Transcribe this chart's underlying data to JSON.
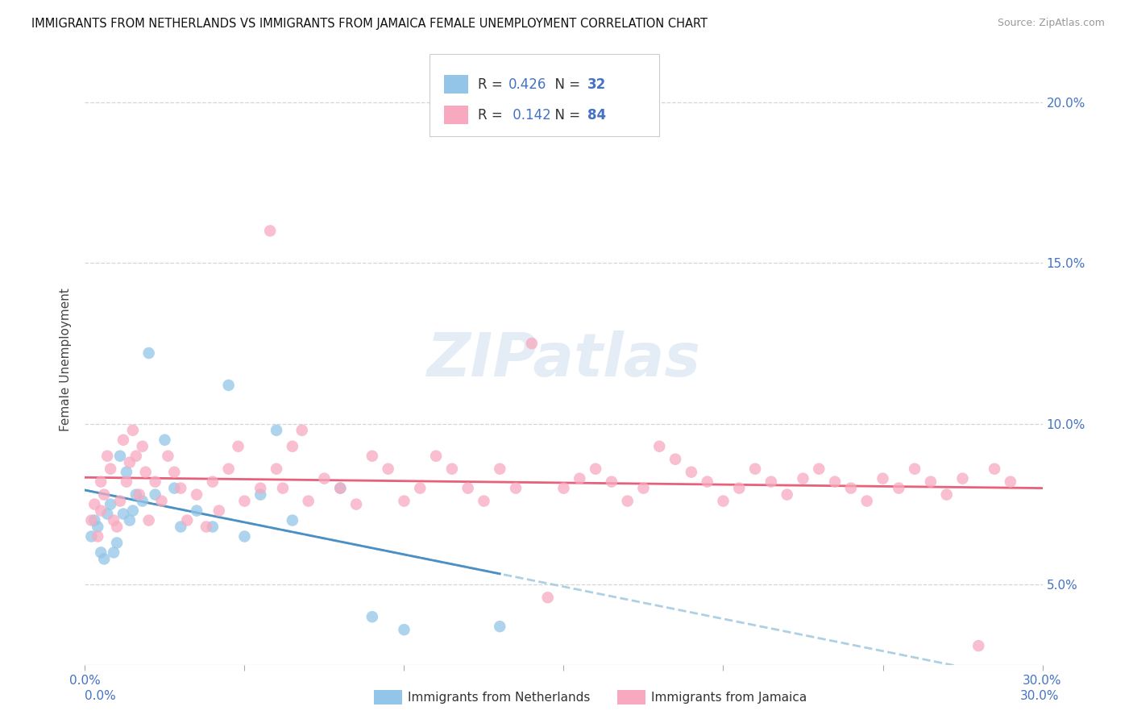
{
  "title": "IMMIGRANTS FROM NETHERLANDS VS IMMIGRANTS FROM JAMAICA FEMALE UNEMPLOYMENT CORRELATION CHART",
  "source": "Source: ZipAtlas.com",
  "ylabel": "Female Unemployment",
  "xlim": [
    0.0,
    0.3
  ],
  "ylim": [
    0.025,
    0.215
  ],
  "y_tick_vals": [
    0.05,
    0.1,
    0.15,
    0.2
  ],
  "y_tick_labels": [
    "5.0%",
    "10.0%",
    "15.0%",
    "20.0%"
  ],
  "legend_labels": [
    "Immigrants from Netherlands",
    "Immigrants from Jamaica"
  ],
  "legend_R": [
    "0.426",
    "0.142"
  ],
  "legend_N": [
    "32",
    "84"
  ],
  "color_blue": "#93c5e8",
  "color_pink": "#f8a9bf",
  "line_blue_solid": "#4a90c4",
  "line_pink_solid": "#e8607a",
  "line_blue_dashed": "#a0c8e0",
  "watermark": "ZIPatlas",
  "nl_x": [
    0.002,
    0.003,
    0.004,
    0.005,
    0.006,
    0.007,
    0.008,
    0.009,
    0.01,
    0.011,
    0.012,
    0.013,
    0.014,
    0.015,
    0.016,
    0.018,
    0.02,
    0.022,
    0.025,
    0.028,
    0.03,
    0.035,
    0.04,
    0.045,
    0.05,
    0.055,
    0.06,
    0.065,
    0.08,
    0.09,
    0.1,
    0.13
  ],
  "nl_y": [
    0.065,
    0.07,
    0.068,
    0.06,
    0.058,
    0.072,
    0.075,
    0.06,
    0.063,
    0.09,
    0.072,
    0.085,
    0.07,
    0.073,
    0.078,
    0.076,
    0.122,
    0.078,
    0.095,
    0.08,
    0.068,
    0.073,
    0.068,
    0.112,
    0.065,
    0.078,
    0.098,
    0.07,
    0.08,
    0.04,
    0.036,
    0.037
  ],
  "ja_x": [
    0.002,
    0.003,
    0.004,
    0.005,
    0.005,
    0.006,
    0.007,
    0.008,
    0.009,
    0.01,
    0.011,
    0.012,
    0.013,
    0.014,
    0.015,
    0.016,
    0.017,
    0.018,
    0.019,
    0.02,
    0.022,
    0.024,
    0.026,
    0.028,
    0.03,
    0.032,
    0.035,
    0.038,
    0.04,
    0.042,
    0.045,
    0.048,
    0.05,
    0.055,
    0.058,
    0.06,
    0.062,
    0.065,
    0.068,
    0.07,
    0.075,
    0.08,
    0.085,
    0.09,
    0.095,
    0.1,
    0.105,
    0.11,
    0.115,
    0.12,
    0.125,
    0.13,
    0.135,
    0.14,
    0.145,
    0.15,
    0.155,
    0.16,
    0.165,
    0.17,
    0.175,
    0.18,
    0.185,
    0.19,
    0.195,
    0.2,
    0.205,
    0.21,
    0.215,
    0.22,
    0.225,
    0.23,
    0.235,
    0.24,
    0.245,
    0.25,
    0.255,
    0.26,
    0.265,
    0.27,
    0.275,
    0.28,
    0.285,
    0.29
  ],
  "ja_y": [
    0.07,
    0.075,
    0.065,
    0.073,
    0.082,
    0.078,
    0.09,
    0.086,
    0.07,
    0.068,
    0.076,
    0.095,
    0.082,
    0.088,
    0.098,
    0.09,
    0.078,
    0.093,
    0.085,
    0.07,
    0.082,
    0.076,
    0.09,
    0.085,
    0.08,
    0.07,
    0.078,
    0.068,
    0.082,
    0.073,
    0.086,
    0.093,
    0.076,
    0.08,
    0.16,
    0.086,
    0.08,
    0.093,
    0.098,
    0.076,
    0.083,
    0.08,
    0.075,
    0.09,
    0.086,
    0.076,
    0.08,
    0.09,
    0.086,
    0.08,
    0.076,
    0.086,
    0.08,
    0.125,
    0.046,
    0.08,
    0.083,
    0.086,
    0.082,
    0.076,
    0.08,
    0.093,
    0.089,
    0.085,
    0.082,
    0.076,
    0.08,
    0.086,
    0.082,
    0.078,
    0.083,
    0.086,
    0.082,
    0.08,
    0.076,
    0.083,
    0.08,
    0.086,
    0.082,
    0.078,
    0.083,
    0.031,
    0.086,
    0.082
  ]
}
